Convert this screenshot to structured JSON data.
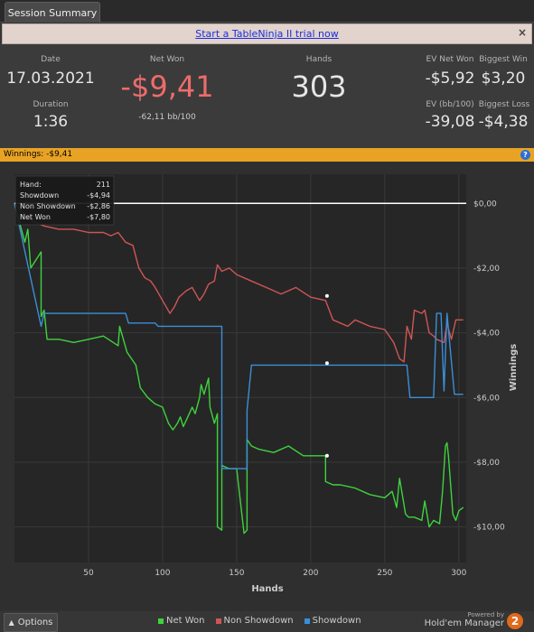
{
  "tab": {
    "label": "Session Summary"
  },
  "promo": {
    "link": "Start a TableNinja II trial now",
    "close": "×"
  },
  "stats": {
    "date_label": "Date",
    "date": "17.03.2021",
    "duration_label": "Duration",
    "duration": "1:36",
    "netwon_label": "Net Won",
    "netwon": "-$9,41",
    "bb100": "-62,11 bb/100",
    "hands_label": "Hands",
    "hands": "303",
    "ev_net_won_label": "EV Net Won",
    "ev_net_won": "-$5,92",
    "biggest_win_label": "Biggest Win",
    "biggest_win": "$3,20",
    "ev_bb_label": "EV (bb/100)",
    "ev_bb": "-39,08",
    "biggest_loss_label": "Biggest Loss",
    "biggest_loss": "-$4,38",
    "netwon_color": "#ef6b6b"
  },
  "winbar": {
    "text": "Winnings:  -$9,41",
    "help": "?"
  },
  "tooltip": {
    "rows": [
      {
        "label": "Hand:",
        "value": "211"
      },
      {
        "label": "Showdown",
        "value": "-$4,94"
      },
      {
        "label": "Non Showdown",
        "value": "-$2,86"
      },
      {
        "label": "Net Won",
        "value": "-$7,80"
      }
    ]
  },
  "chart_data": {
    "type": "line",
    "xlabel": "Hands",
    "ylabel": "Winnings",
    "xlim": [
      0,
      305
    ],
    "ylim": [
      -11.1,
      0.9
    ],
    "xticks": [
      50,
      100,
      150,
      200,
      250,
      300
    ],
    "xtick_labels": [
      "50",
      "100",
      "150",
      "200",
      "250",
      "300"
    ],
    "yticks": [
      0,
      -2,
      -4,
      -6,
      -8,
      -10
    ],
    "ytick_labels": [
      "$0,00",
      "-$2,00",
      "-$4,00",
      "-$6,00",
      "-$8,00",
      "-$10,00"
    ],
    "grid": true,
    "legend_position": "bottom",
    "series": [
      {
        "name": "Net Won",
        "color": "#3ed33e",
        "x": [
          0,
          7,
          9,
          11,
          18,
          18,
          20,
          22,
          30,
          40,
          50,
          60,
          70,
          71,
          76,
          82,
          85,
          90,
          95,
          100,
          104,
          107,
          110,
          112,
          114,
          117,
          120,
          122,
          125,
          126,
          128,
          131,
          132,
          135,
          137,
          137,
          140,
          140,
          145,
          150,
          155,
          157,
          157,
          160,
          165,
          175,
          185,
          195,
          200,
          205,
          210,
          210,
          215,
          220,
          230,
          240,
          250,
          255,
          258,
          260,
          264,
          266,
          270,
          275,
          277,
          280,
          283,
          287,
          289,
          291,
          292,
          293,
          296,
          298,
          300,
          303
        ],
        "y": [
          0,
          -1.2,
          -0.8,
          -2.0,
          -1.5,
          -3.5,
          -3.3,
          -4.2,
          -4.2,
          -4.3,
          -4.2,
          -4.1,
          -4.4,
          -3.8,
          -4.6,
          -5.0,
          -5.7,
          -6.0,
          -6.2,
          -6.3,
          -6.8,
          -7.0,
          -6.8,
          -6.6,
          -6.9,
          -6.6,
          -6.3,
          -6.5,
          -6.0,
          -5.6,
          -5.9,
          -5.4,
          -6.3,
          -6.8,
          -6.5,
          -10.0,
          -10.1,
          -8.1,
          -8.2,
          -8.2,
          -10.2,
          -10.1,
          -7.3,
          -7.5,
          -7.6,
          -7.7,
          -7.5,
          -7.8,
          -7.8,
          -7.8,
          -7.8,
          -8.6,
          -8.7,
          -8.7,
          -8.8,
          -9.0,
          -9.1,
          -8.9,
          -9.4,
          -8.5,
          -9.6,
          -9.7,
          -9.7,
          -9.8,
          -9.2,
          -10.0,
          -9.8,
          -9.9,
          -8.9,
          -7.5,
          -7.4,
          -7.8,
          -9.6,
          -9.8,
          -9.5,
          -9.4
        ]
      },
      {
        "name": "Non Showdown",
        "color": "#d05555",
        "x": [
          0,
          10,
          15,
          20,
          30,
          40,
          50,
          60,
          65,
          70,
          75,
          80,
          84,
          88,
          92,
          95,
          100,
          105,
          108,
          111,
          116,
          120,
          125,
          128,
          131,
          135,
          137,
          140,
          145,
          150,
          160,
          170,
          180,
          190,
          200,
          210,
          215,
          220,
          225,
          230,
          240,
          250,
          256,
          260,
          263,
          265,
          268,
          270,
          275,
          277,
          280,
          283,
          285,
          290,
          292,
          295,
          298,
          300,
          303
        ],
        "y": [
          0,
          -0.5,
          -0.6,
          -0.7,
          -0.8,
          -0.8,
          -0.9,
          -0.9,
          -1.0,
          -0.9,
          -1.2,
          -1.3,
          -2.0,
          -2.3,
          -2.4,
          -2.6,
          -3.0,
          -3.4,
          -3.2,
          -2.9,
          -2.7,
          -2.6,
          -3.0,
          -2.8,
          -2.5,
          -2.4,
          -1.9,
          -2.1,
          -2.0,
          -2.2,
          -2.4,
          -2.6,
          -2.8,
          -2.6,
          -2.9,
          -3.0,
          -3.6,
          -3.7,
          -3.8,
          -3.6,
          -3.8,
          -3.9,
          -4.3,
          -4.8,
          -4.9,
          -3.8,
          -4.2,
          -3.3,
          -3.4,
          -3.3,
          -4.0,
          -4.1,
          -4.2,
          -4.3,
          -3.7,
          -4.2,
          -3.6,
          -3.6,
          -3.6
        ]
      },
      {
        "name": "Showdown",
        "color": "#3a8fd8",
        "x": [
          0,
          18,
          20,
          75,
          77,
          95,
          97,
          115,
          140,
          140,
          157,
          157,
          160,
          265,
          267,
          280,
          283,
          285,
          285,
          288,
          290,
          292,
          292,
          297,
          299,
          303
        ],
        "y": [
          0,
          -3.8,
          -3.4,
          -3.4,
          -3.7,
          -3.7,
          -3.8,
          -3.8,
          -3.8,
          -8.2,
          -8.2,
          -6.4,
          -5.0,
          -5.0,
          -6.0,
          -6.0,
          -6.0,
          -3.4,
          -3.4,
          -3.4,
          -5.8,
          -3.4,
          -3.4,
          -5.9,
          -5.9,
          -5.9
        ]
      }
    ],
    "markers": [
      {
        "series": "Net Won",
        "x": 211,
        "y": -7.8
      },
      {
        "series": "Non Showdown",
        "x": 211,
        "y": -2.86
      },
      {
        "series": "Showdown",
        "x": 211,
        "y": -4.94
      }
    ],
    "zero_line_color": "#ffffff"
  },
  "footer": {
    "options_label": "Options",
    "options_icon": "caret-up-icon",
    "powered_label": "Powered by",
    "brand": "Hold'em Manager",
    "logo": "2"
  }
}
